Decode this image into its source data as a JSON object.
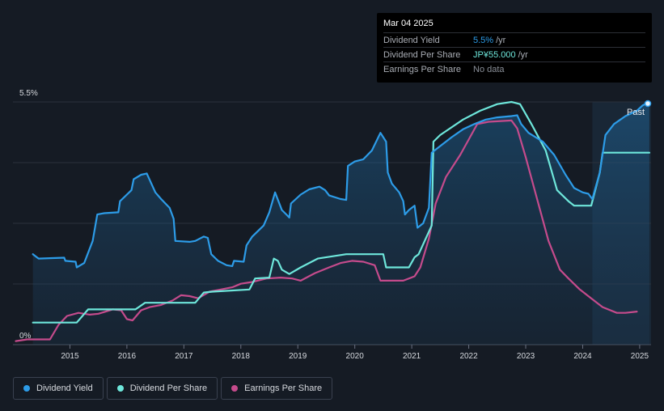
{
  "tooltip": {
    "date": "Mar 04 2025",
    "rows": [
      {
        "label": "Dividend Yield",
        "value": "5.5%",
        "unit": "/yr",
        "color": "#2d9ce8"
      },
      {
        "label": "Dividend Per Share",
        "value": "JP¥55.000",
        "unit": "/yr",
        "color": "#6ee7db"
      },
      {
        "label": "Earnings Per Share",
        "value": "No data",
        "unit": "",
        "color": "#8a8f98"
      }
    ]
  },
  "legend": [
    {
      "label": "Dividend Yield",
      "color": "#2d9ce8"
    },
    {
      "label": "Dividend Per Share",
      "color": "#6ee7db"
    },
    {
      "label": "Earnings Per Share",
      "color": "#c54b8c"
    }
  ],
  "chart_data": {
    "type": "line",
    "ylim": [
      0,
      5.5
    ],
    "y_tick_labels": [
      "0%",
      "5.5%"
    ],
    "xlim": [
      2014.0,
      2025.2
    ],
    "x_ticks": [
      2015,
      2016,
      2017,
      2018,
      2019,
      2020,
      2021,
      2022,
      2023,
      2024,
      2025
    ],
    "x_tick_labels": [
      "2015",
      "2016",
      "2017",
      "2018",
      "2019",
      "2020",
      "2021",
      "2022",
      "2023",
      "2024",
      "2025"
    ],
    "grid": true,
    "past_label": "Past",
    "past_start": 2024.17,
    "series": [
      {
        "name": "Dividend Yield",
        "color": "#2d9ce8",
        "fill": true,
        "points": [
          [
            2014.35,
            2.05
          ],
          [
            2014.45,
            1.95
          ],
          [
            2014.9,
            1.97
          ],
          [
            2014.92,
            1.9
          ],
          [
            2015.1,
            1.88
          ],
          [
            2015.12,
            1.75
          ],
          [
            2015.25,
            1.85
          ],
          [
            2015.4,
            2.35
          ],
          [
            2015.48,
            2.95
          ],
          [
            2015.6,
            2.98
          ],
          [
            2015.85,
            3.0
          ],
          [
            2015.88,
            3.25
          ],
          [
            2016.0,
            3.4
          ],
          [
            2016.08,
            3.5
          ],
          [
            2016.12,
            3.75
          ],
          [
            2016.25,
            3.85
          ],
          [
            2016.35,
            3.88
          ],
          [
            2016.5,
            3.45
          ],
          [
            2016.6,
            3.3
          ],
          [
            2016.75,
            3.1
          ],
          [
            2016.82,
            2.85
          ],
          [
            2016.85,
            2.35
          ],
          [
            2017.1,
            2.33
          ],
          [
            2017.2,
            2.35
          ],
          [
            2017.35,
            2.45
          ],
          [
            2017.42,
            2.42
          ],
          [
            2017.48,
            2.05
          ],
          [
            2017.6,
            1.9
          ],
          [
            2017.75,
            1.8
          ],
          [
            2017.85,
            1.78
          ],
          [
            2017.88,
            1.9
          ],
          [
            2018.05,
            1.88
          ],
          [
            2018.1,
            2.25
          ],
          [
            2018.2,
            2.45
          ],
          [
            2018.4,
            2.7
          ],
          [
            2018.5,
            3.0
          ],
          [
            2018.6,
            3.45
          ],
          [
            2018.72,
            3.05
          ],
          [
            2018.8,
            2.95
          ],
          [
            2018.85,
            2.88
          ],
          [
            2018.88,
            3.2
          ],
          [
            2019.05,
            3.4
          ],
          [
            2019.2,
            3.52
          ],
          [
            2019.38,
            3.58
          ],
          [
            2019.48,
            3.5
          ],
          [
            2019.55,
            3.38
          ],
          [
            2019.75,
            3.3
          ],
          [
            2019.85,
            3.28
          ],
          [
            2019.88,
            4.05
          ],
          [
            2020.0,
            4.15
          ],
          [
            2020.15,
            4.2
          ],
          [
            2020.3,
            4.4
          ],
          [
            2020.45,
            4.8
          ],
          [
            2020.55,
            4.6
          ],
          [
            2020.58,
            3.9
          ],
          [
            2020.65,
            3.65
          ],
          [
            2020.78,
            3.45
          ],
          [
            2020.85,
            3.25
          ],
          [
            2020.88,
            2.95
          ],
          [
            2020.95,
            3.05
          ],
          [
            2021.05,
            3.15
          ],
          [
            2021.1,
            2.65
          ],
          [
            2021.2,
            2.75
          ],
          [
            2021.3,
            3.1
          ],
          [
            2021.35,
            4.35
          ],
          [
            2021.5,
            4.5
          ],
          [
            2021.7,
            4.7
          ],
          [
            2021.9,
            4.88
          ],
          [
            2022.1,
            5.0
          ],
          [
            2022.3,
            5.1
          ],
          [
            2022.5,
            5.15
          ],
          [
            2022.75,
            5.18
          ],
          [
            2022.85,
            5.2
          ],
          [
            2022.92,
            5.0
          ],
          [
            2023.05,
            4.8
          ],
          [
            2023.3,
            4.6
          ],
          [
            2023.5,
            4.3
          ],
          [
            2023.7,
            3.85
          ],
          [
            2023.85,
            3.55
          ],
          [
            2024.0,
            3.45
          ],
          [
            2024.1,
            3.42
          ],
          [
            2024.17,
            3.3
          ],
          [
            2024.3,
            3.9
          ],
          [
            2024.4,
            4.75
          ],
          [
            2024.55,
            5.0
          ],
          [
            2024.75,
            5.18
          ],
          [
            2024.95,
            5.3
          ],
          [
            2025.05,
            5.42
          ],
          [
            2025.17,
            5.5
          ]
        ]
      },
      {
        "name": "Dividend Per Share",
        "color": "#6ee7db",
        "fill": false,
        "points": [
          [
            2014.35,
            0.5
          ],
          [
            2015.12,
            0.5
          ],
          [
            2015.32,
            0.8
          ],
          [
            2016.15,
            0.8
          ],
          [
            2016.32,
            0.95
          ],
          [
            2017.2,
            0.95
          ],
          [
            2017.35,
            1.18
          ],
          [
            2017.5,
            1.2
          ],
          [
            2018.15,
            1.25
          ],
          [
            2018.25,
            1.5
          ],
          [
            2018.5,
            1.52
          ],
          [
            2018.58,
            1.95
          ],
          [
            2018.65,
            1.9
          ],
          [
            2018.72,
            1.7
          ],
          [
            2018.85,
            1.6
          ],
          [
            2019.05,
            1.75
          ],
          [
            2019.35,
            1.95
          ],
          [
            2019.7,
            2.02
          ],
          [
            2019.85,
            2.05
          ],
          [
            2020.5,
            2.05
          ],
          [
            2020.55,
            1.75
          ],
          [
            2020.95,
            1.75
          ],
          [
            2021.05,
            1.98
          ],
          [
            2021.12,
            2.05
          ],
          [
            2021.35,
            2.7
          ],
          [
            2021.38,
            4.6
          ],
          [
            2021.5,
            4.75
          ],
          [
            2021.9,
            5.1
          ],
          [
            2022.2,
            5.3
          ],
          [
            2022.5,
            5.45
          ],
          [
            2022.75,
            5.5
          ],
          [
            2022.9,
            5.45
          ],
          [
            2023.1,
            5.0
          ],
          [
            2023.35,
            4.4
          ],
          [
            2023.55,
            3.5
          ],
          [
            2023.75,
            3.25
          ],
          [
            2023.85,
            3.15
          ],
          [
            2024.15,
            3.15
          ],
          [
            2024.3,
            3.9
          ],
          [
            2024.35,
            4.35
          ],
          [
            2024.5,
            4.35
          ],
          [
            2025.17,
            4.35
          ]
        ]
      },
      {
        "name": "Earnings Per Share",
        "color": "#c54b8c",
        "fill": false,
        "points": [
          [
            2014.05,
            0.08
          ],
          [
            2014.25,
            0.12
          ],
          [
            2014.65,
            0.12
          ],
          [
            2014.8,
            0.45
          ],
          [
            2014.95,
            0.65
          ],
          [
            2015.15,
            0.72
          ],
          [
            2015.35,
            0.68
          ],
          [
            2015.5,
            0.7
          ],
          [
            2015.75,
            0.8
          ],
          [
            2015.9,
            0.78
          ],
          [
            2016.0,
            0.58
          ],
          [
            2016.1,
            0.55
          ],
          [
            2016.25,
            0.78
          ],
          [
            2016.4,
            0.85
          ],
          [
            2016.6,
            0.9
          ],
          [
            2016.8,
            1.0
          ],
          [
            2016.95,
            1.12
          ],
          [
            2017.1,
            1.1
          ],
          [
            2017.25,
            1.05
          ],
          [
            2017.45,
            1.2
          ],
          [
            2017.65,
            1.25
          ],
          [
            2017.85,
            1.3
          ],
          [
            2018.0,
            1.38
          ],
          [
            2018.2,
            1.42
          ],
          [
            2018.45,
            1.5
          ],
          [
            2018.7,
            1.52
          ],
          [
            2018.9,
            1.5
          ],
          [
            2019.05,
            1.45
          ],
          [
            2019.3,
            1.62
          ],
          [
            2019.55,
            1.75
          ],
          [
            2019.75,
            1.85
          ],
          [
            2019.95,
            1.9
          ],
          [
            2020.15,
            1.88
          ],
          [
            2020.35,
            1.8
          ],
          [
            2020.45,
            1.45
          ],
          [
            2020.65,
            1.45
          ],
          [
            2020.85,
            1.45
          ],
          [
            2021.05,
            1.55
          ],
          [
            2021.15,
            1.75
          ],
          [
            2021.3,
            2.4
          ],
          [
            2021.42,
            3.2
          ],
          [
            2021.6,
            3.8
          ],
          [
            2021.85,
            4.3
          ],
          [
            2022.0,
            4.65
          ],
          [
            2022.15,
            5.0
          ],
          [
            2022.35,
            5.05
          ],
          [
            2022.75,
            5.08
          ],
          [
            2022.85,
            4.9
          ],
          [
            2023.0,
            4.25
          ],
          [
            2023.2,
            3.3
          ],
          [
            2023.4,
            2.35
          ],
          [
            2023.6,
            1.7
          ],
          [
            2023.75,
            1.5
          ],
          [
            2023.95,
            1.25
          ],
          [
            2024.15,
            1.05
          ],
          [
            2024.25,
            0.95
          ],
          [
            2024.35,
            0.85
          ],
          [
            2024.6,
            0.72
          ],
          [
            2024.75,
            0.72
          ],
          [
            2024.95,
            0.75
          ]
        ]
      }
    ]
  }
}
